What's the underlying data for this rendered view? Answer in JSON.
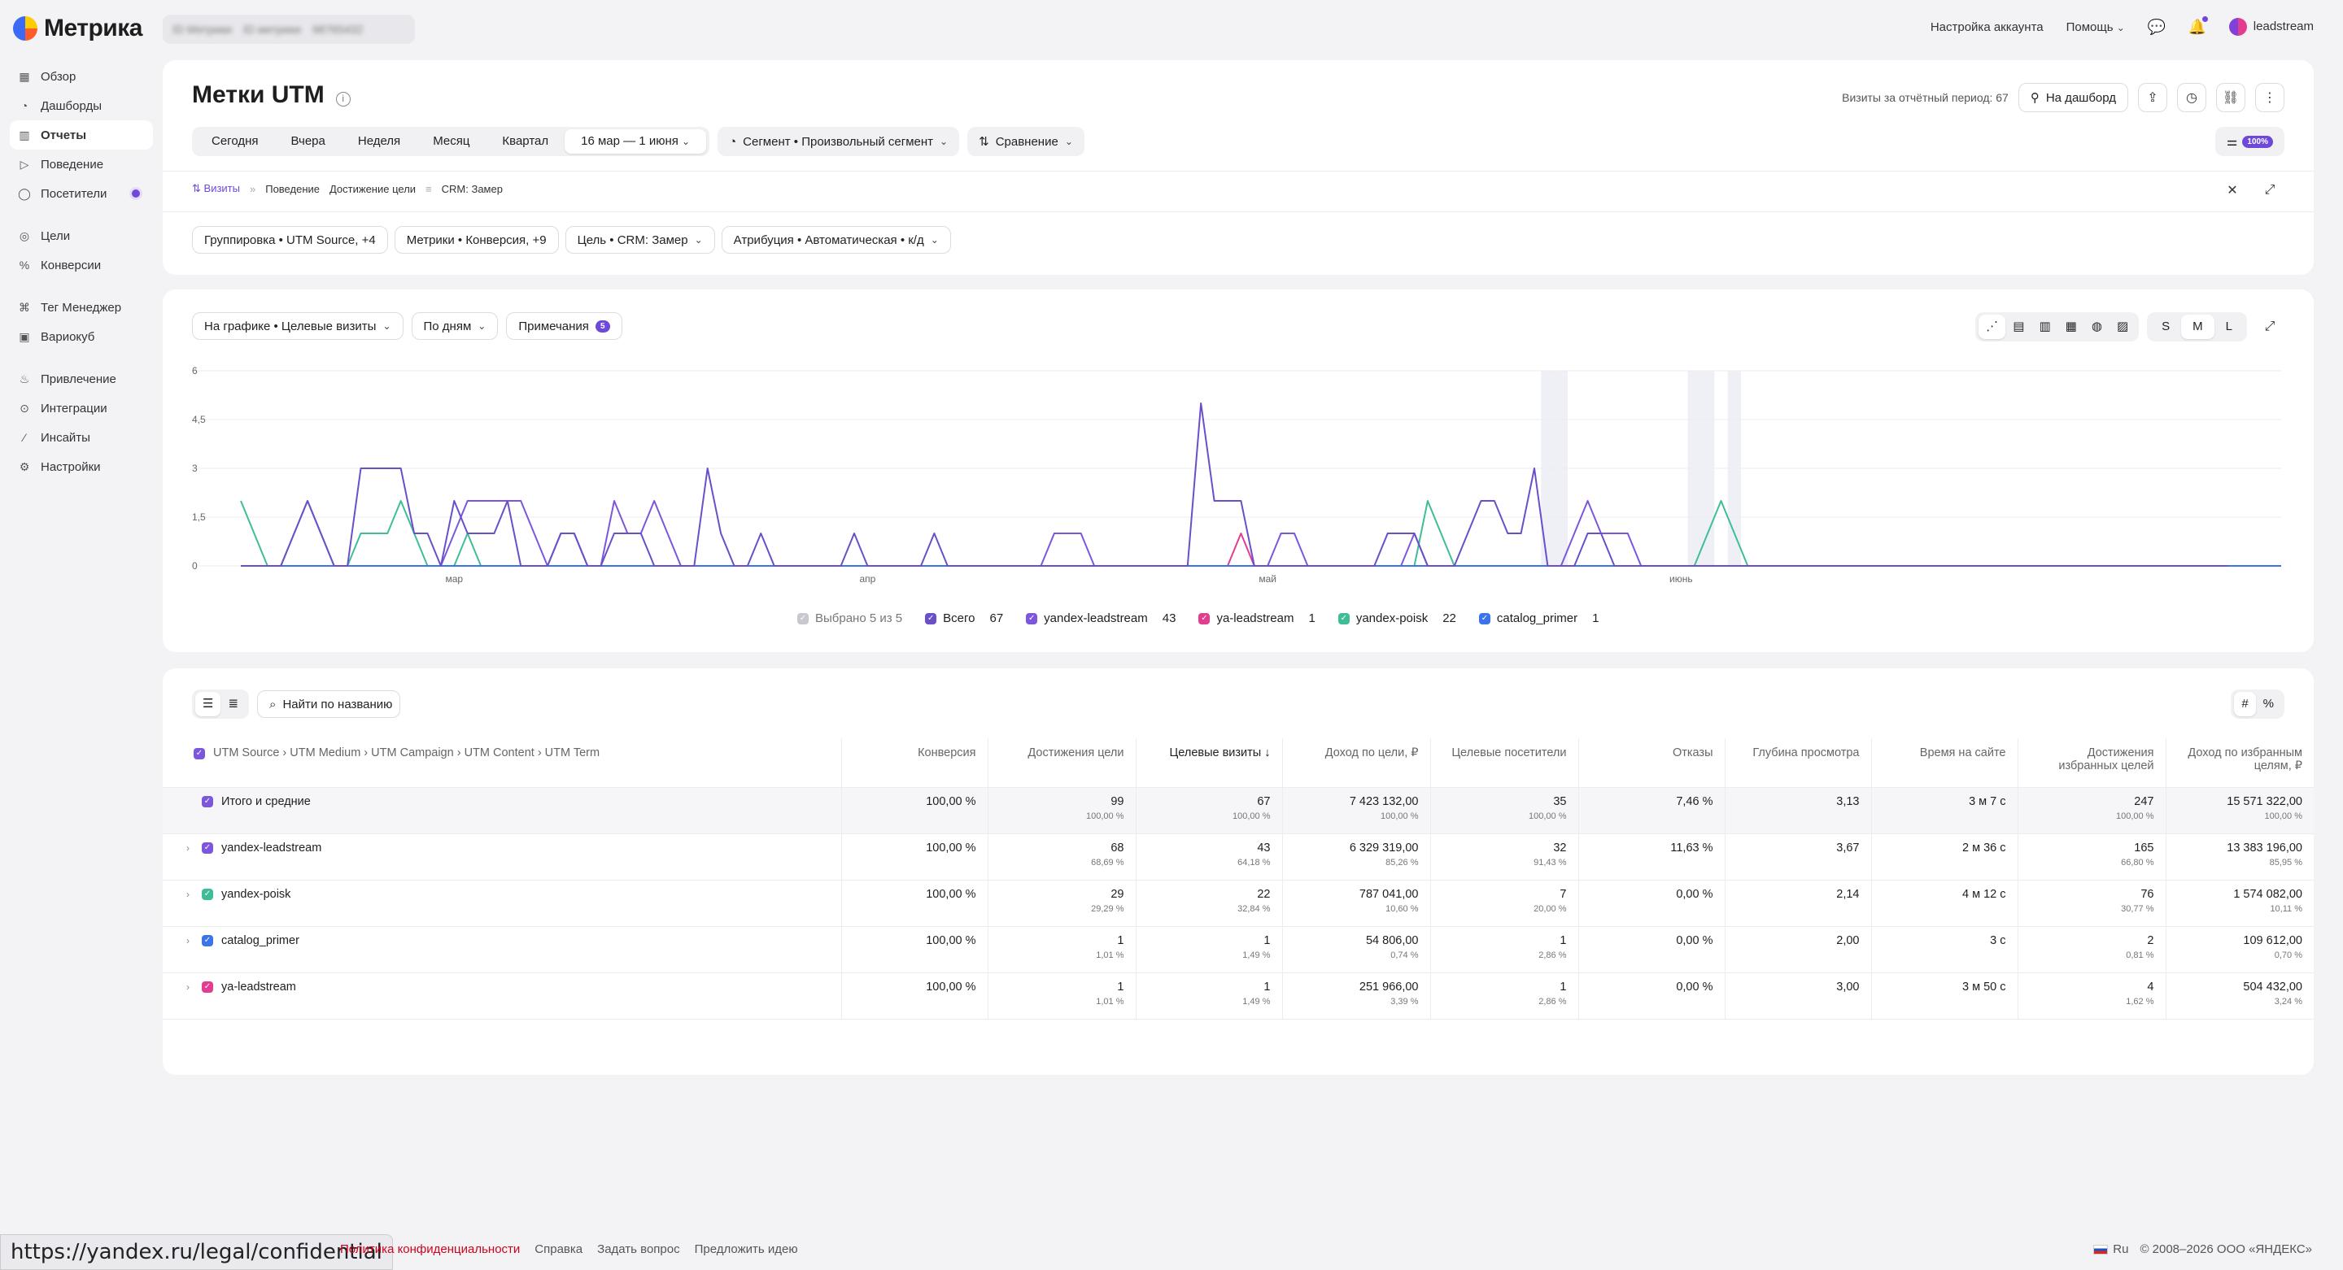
{
  "app": {
    "name": "Метрика"
  },
  "counter": {
    "label": "ID Метрики",
    "name": "ID метрики",
    "number": "98765432"
  },
  "topbar": {
    "account_settings": "Настройка аккаунта",
    "help": "Помощь",
    "user": "leadstream"
  },
  "sidebar": {
    "items": [
      {
        "label": "Обзор",
        "icon": "grid-icon"
      },
      {
        "label": "Дашборды",
        "icon": "dashboard-icon"
      },
      {
        "label": "Отчеты",
        "icon": "reports-icon",
        "active": true
      },
      {
        "label": "Поведение",
        "icon": "play-icon"
      },
      {
        "label": "Посетители",
        "icon": "user-icon"
      },
      {
        "label": "Цели",
        "icon": "target-icon"
      },
      {
        "label": "Конверсии",
        "icon": "percent-icon"
      },
      {
        "label": "Тег Менеджер",
        "icon": "tag-icon"
      },
      {
        "label": "Вариокуб",
        "icon": "cube-icon"
      },
      {
        "label": "Привлечение",
        "icon": "flame-icon"
      },
      {
        "label": "Интеграции",
        "icon": "plug-icon"
      },
      {
        "label": "Инсайты",
        "icon": "wand-icon"
      },
      {
        "label": "Настройки",
        "icon": "gear-icon"
      }
    ]
  },
  "header": {
    "title": "Метки UTM",
    "visits_label": "Визиты за отчётный период: 67",
    "to_dashboard": "На дашборд",
    "periods": [
      "Сегодня",
      "Вчера",
      "Неделя",
      "Месяц",
      "Квартал"
    ],
    "date_range": "16 мар — 1 июня",
    "segment": "Сегмент • Произвольный сегмент",
    "comparison": "Сравнение",
    "sampling_badge": "100%"
  },
  "breadcrumbs": [
    "Визиты",
    "Поведение",
    "Достижение цели",
    "CRM: Замер"
  ],
  "filters": [
    "Группировка • UTM Source, +4",
    "Метрики • Конверсия, +9",
    "Цель • CRM: Замер",
    "Атрибуция • Автоматическая • к/д"
  ],
  "chart_controls": {
    "on_chart": "На графике • Целевые визиты",
    "by_days": "По дням",
    "notes": "Примечания",
    "notes_count": "5",
    "sizes": [
      "S",
      "M",
      "L"
    ],
    "selected_size": "M"
  },
  "chart_data": {
    "type": "line",
    "ylim": [
      0,
      6
    ],
    "y_ticks": [
      "0",
      "1,5",
      "3",
      "4,5",
      "6"
    ],
    "x_tick_labels": [
      {
        "label": "мар",
        "index": 16
      },
      {
        "label": "апр",
        "index": 47
      },
      {
        "label": "май",
        "index": 77
      },
      {
        "label": "июнь",
        "index": 108
      }
    ],
    "x_start": "2026-03-01",
    "x_end": "2026-06-01",
    "highlight_days": [
      98,
      99,
      109,
      110,
      112
    ],
    "series": [
      {
        "name": "yandex-leadstream",
        "color": "#7c57dc",
        "values": [
          0,
          0,
          0,
          0,
          0,
          0,
          0,
          0,
          0,
          0,
          0,
          0,
          0,
          0,
          0,
          0,
          1,
          2,
          2,
          2,
          2,
          2,
          1,
          0,
          1,
          1,
          0,
          0,
          2,
          1,
          1,
          2,
          1,
          0,
          0,
          0,
          0,
          0,
          0,
          0,
          0,
          0,
          0,
          0,
          0,
          0,
          0,
          0,
          0,
          0,
          0,
          0,
          0,
          0,
          0,
          0,
          0,
          0,
          0,
          0,
          0,
          1,
          1,
          1,
          0,
          0,
          0,
          0,
          0,
          0,
          0,
          0,
          0,
          0,
          0,
          0,
          0,
          0,
          1,
          1,
          0,
          0,
          0,
          0,
          0,
          0,
          0,
          0,
          1,
          0,
          0,
          0,
          0,
          0,
          0,
          0,
          0,
          0,
          0,
          0,
          1,
          2,
          1,
          1,
          1,
          0,
          0,
          0,
          0,
          0,
          0,
          0,
          0,
          0,
          0,
          0,
          0,
          0,
          0,
          0,
          0,
          0,
          0,
          0,
          0,
          0,
          0,
          0,
          0,
          0,
          0,
          0,
          0,
          0,
          0,
          0,
          0,
          0,
          0,
          0,
          0,
          0,
          0,
          0,
          0,
          0,
          0,
          0,
          0,
          0,
          0,
          0,
          0,
          0
        ]
      },
      {
        "name": "ya-leadstream",
        "color": "#e23d8e",
        "values": [
          0,
          0,
          0,
          0,
          0,
          0,
          0,
          0,
          0,
          0,
          0,
          0,
          0,
          0,
          0,
          0,
          0,
          0,
          0,
          0,
          0,
          0,
          0,
          0,
          0,
          0,
          0,
          0,
          0,
          0,
          0,
          0,
          0,
          0,
          0,
          0,
          0,
          0,
          0,
          0,
          0,
          0,
          0,
          0,
          0,
          0,
          0,
          0,
          0,
          0,
          0,
          0,
          0,
          0,
          0,
          0,
          0,
          0,
          0,
          0,
          0,
          0,
          0,
          0,
          0,
          0,
          0,
          0,
          0,
          0,
          0,
          0,
          0,
          0,
          0,
          1,
          0,
          0,
          0,
          0,
          0,
          0,
          0,
          0,
          0,
          0,
          0,
          0,
          0,
          0,
          0,
          0,
          0,
          0,
          0,
          0,
          0,
          0,
          0,
          0,
          0,
          0,
          0,
          0,
          0,
          0,
          0,
          0,
          0,
          0,
          0,
          0,
          0,
          0,
          0,
          0,
          0,
          0,
          0,
          0,
          0,
          0,
          0,
          0,
          0,
          0,
          0,
          0,
          0,
          0,
          0,
          0,
          0,
          0,
          0,
          0,
          0,
          0,
          0,
          0,
          0,
          0,
          0,
          0,
          0,
          0,
          0,
          0,
          0,
          0,
          0,
          0,
          0,
          0
        ]
      },
      {
        "name": "yandex-poisk",
        "color": "#3fbd99",
        "values": [
          2,
          1,
          0,
          0,
          1,
          2,
          1,
          0,
          0,
          1,
          1,
          1,
          2,
          1,
          0,
          0,
          0,
          1,
          0,
          0,
          0,
          0,
          0,
          0,
          0,
          0,
          0,
          0,
          0,
          0,
          0,
          0,
          0,
          0,
          0,
          0,
          0,
          0,
          0,
          0,
          0,
          0,
          0,
          0,
          0,
          0,
          0,
          0,
          0,
          0,
          0,
          0,
          0,
          0,
          0,
          0,
          0,
          0,
          0,
          0,
          0,
          0,
          0,
          0,
          0,
          0,
          0,
          0,
          0,
          0,
          0,
          0,
          0,
          0,
          0,
          0,
          0,
          0,
          0,
          0,
          0,
          0,
          0,
          0,
          0,
          0,
          0,
          0,
          0,
          2,
          1,
          0,
          0,
          0,
          0,
          0,
          0,
          0,
          0,
          0,
          0,
          0,
          0,
          0,
          0,
          0,
          0,
          0,
          0,
          0,
          1,
          2,
          1,
          0,
          0,
          0,
          0,
          0,
          0,
          0,
          0,
          0,
          0,
          0,
          0,
          0,
          0,
          0,
          0,
          0,
          0,
          0,
          0,
          0,
          0,
          0,
          0,
          0,
          0,
          0,
          0,
          0,
          0,
          0,
          0,
          0,
          0,
          0,
          0,
          0,
          0,
          0,
          0,
          0
        ]
      },
      {
        "name": "catalog_primer",
        "color": "#3b73e8",
        "values": [
          0,
          0,
          0,
          0,
          0,
          0,
          0,
          0,
          0,
          0,
          0,
          0,
          0,
          0,
          0,
          0,
          0,
          0,
          0,
          0,
          0,
          0,
          0,
          0,
          0,
          0,
          0,
          0,
          0,
          0,
          0,
          0,
          0,
          0,
          0,
          0,
          0,
          0,
          0,
          0,
          0,
          0,
          0,
          0,
          0,
          0,
          0,
          0,
          0,
          0,
          0,
          0,
          0,
          0,
          0,
          0,
          0,
          0,
          0,
          0,
          0,
          0,
          0,
          0,
          0,
          0,
          0,
          0,
          0,
          0,
          0,
          0,
          0,
          0,
          0,
          0,
          0,
          0,
          0,
          0,
          0,
          0,
          0,
          0,
          0,
          0,
          0,
          0,
          0,
          0,
          0,
          0,
          0,
          0,
          0,
          0,
          0,
          0,
          0,
          0,
          0,
          0,
          0,
          0,
          0,
          0,
          0,
          0,
          0,
          0,
          0,
          0,
          0,
          0,
          0,
          0,
          0,
          0,
          0,
          0,
          0,
          0,
          0,
          0,
          0,
          0,
          0,
          0,
          0,
          0,
          0,
          0,
          0,
          0,
          0,
          0,
          0,
          0,
          0,
          0,
          0,
          0,
          0,
          0,
          0,
          0,
          0,
          0,
          0,
          0,
          0,
          0,
          0,
          0
        ]
      },
      {
        "name": "Всего",
        "color": "#6a4fc9",
        "values": [
          0,
          0,
          0,
          0,
          1,
          2,
          1,
          0,
          0,
          3,
          3,
          3,
          3,
          1,
          1,
          0,
          2,
          1,
          1,
          1,
          2,
          0,
          0,
          0,
          1,
          1,
          0,
          0,
          1,
          1,
          1,
          0,
          0,
          0,
          0,
          3,
          1,
          0,
          0,
          1,
          0,
          0,
          0,
          0,
          0,
          0,
          1,
          0,
          0,
          0,
          0,
          0,
          1,
          0,
          0,
          0,
          0,
          0,
          0,
          0,
          0,
          0,
          0,
          0,
          0,
          0,
          0,
          0,
          0,
          0,
          0,
          0,
          5,
          2,
          2,
          2,
          0,
          0,
          0,
          0,
          0,
          0,
          0,
          0,
          0,
          0,
          1,
          1,
          1,
          0,
          0,
          0,
          1,
          2,
          2,
          1,
          1,
          3,
          0,
          0,
          0,
          1,
          1,
          0,
          0,
          0,
          0,
          0,
          0,
          0,
          0,
          0,
          0,
          0,
          0,
          0,
          0,
          0,
          0,
          0,
          0,
          0,
          0,
          0,
          0,
          0,
          0,
          0,
          0,
          0,
          0,
          0,
          0,
          0,
          0,
          0,
          0,
          0,
          0,
          0,
          0,
          0,
          0,
          0,
          0,
          0,
          0,
          0,
          0,
          0
        ]
      }
    ],
    "legend": {
      "selected_label": "Выбрано 5 из 5",
      "entries": [
        {
          "name": "Всего",
          "count": "67",
          "color": "#6a4fc9"
        },
        {
          "name": "yandex-leadstream",
          "count": "43",
          "color": "#7c57dc"
        },
        {
          "name": "ya-leadstream",
          "count": "1",
          "color": "#e23d8e"
        },
        {
          "name": "yandex-poisk",
          "count": "22",
          "color": "#3fbd99"
        },
        {
          "name": "catalog_primer",
          "count": "1",
          "color": "#3b73e8"
        }
      ]
    }
  },
  "table_controls": {
    "search_placeholder": "Найти по названию"
  },
  "table": {
    "group_header": "UTM Source › UTM Medium › UTM Campaign › UTM Content › UTM Term",
    "columns": [
      "Конверсия",
      "Достижения цели",
      "Целевые визиты",
      "Доход по цели, ₽",
      "Целевые посетители",
      "Отказы",
      "Глубина просмотра",
      "Время на сайте",
      "Достижения избранных целей",
      "Доход по избранным целям, ₽"
    ],
    "sorted_column": "Целевые визиты ↓",
    "rows": [
      {
        "name": "Итого и средние",
        "color": "#7c57dc",
        "total": true,
        "cells": [
          [
            "100,00 %",
            ""
          ],
          [
            "99",
            "100,00 %"
          ],
          [
            "67",
            "100,00 %"
          ],
          [
            "7 423 132,00",
            "100,00 %"
          ],
          [
            "35",
            "100,00 %"
          ],
          [
            "7,46 %",
            ""
          ],
          [
            "3,13",
            ""
          ],
          [
            "3 м 7 с",
            ""
          ],
          [
            "247",
            "100,00 %"
          ],
          [
            "15 571 322,00",
            "100,00 %"
          ]
        ]
      },
      {
        "name": "yandex-leadstream",
        "color": "#7c57dc",
        "cells": [
          [
            "100,00 %",
            ""
          ],
          [
            "68",
            "68,69 %"
          ],
          [
            "43",
            "64,18 %"
          ],
          [
            "6 329 319,00",
            "85,26 %"
          ],
          [
            "32",
            "91,43 %"
          ],
          [
            "11,63 %",
            ""
          ],
          [
            "3,67",
            ""
          ],
          [
            "2 м 36 с",
            ""
          ],
          [
            "165",
            "66,80 %"
          ],
          [
            "13 383 196,00",
            "85,95 %"
          ]
        ]
      },
      {
        "name": "yandex-poisk",
        "color": "#3fbd99",
        "cells": [
          [
            "100,00 %",
            ""
          ],
          [
            "29",
            "29,29 %"
          ],
          [
            "22",
            "32,84 %"
          ],
          [
            "787 041,00",
            "10,60 %"
          ],
          [
            "7",
            "20,00 %"
          ],
          [
            "0,00 %",
            ""
          ],
          [
            "2,14",
            ""
          ],
          [
            "4 м 12 с",
            ""
          ],
          [
            "76",
            "30,77 %"
          ],
          [
            "1 574 082,00",
            "10,11 %"
          ]
        ]
      },
      {
        "name": "catalog_primer",
        "color": "#3b73e8",
        "cells": [
          [
            "100,00 %",
            ""
          ],
          [
            "1",
            "1,01 %"
          ],
          [
            "1",
            "1,49 %"
          ],
          [
            "54 806,00",
            "0,74 %"
          ],
          [
            "1",
            "2,86 %"
          ],
          [
            "0,00 %",
            ""
          ],
          [
            "2,00",
            ""
          ],
          [
            "3 с",
            ""
          ],
          [
            "2",
            "0,81 %"
          ],
          [
            "109 612,00",
            "0,70 %"
          ]
        ]
      },
      {
        "name": "ya-leadstream",
        "color": "#e23d8e",
        "cells": [
          [
            "100,00 %",
            ""
          ],
          [
            "1",
            "1,01 %"
          ],
          [
            "1",
            "1,49 %"
          ],
          [
            "251 966,00",
            "3,39 %"
          ],
          [
            "1",
            "2,86 %"
          ],
          [
            "0,00 %",
            ""
          ],
          [
            "3,00",
            ""
          ],
          [
            "3 м 50 с",
            ""
          ],
          [
            "4",
            "1,62 %"
          ],
          [
            "504 432,00",
            "3,24 %"
          ]
        ]
      }
    ]
  },
  "footer": {
    "status_url": "https://yandex.ru/legal/confidential",
    "links": [
      "Политика конфиденциальности",
      "Справка",
      "Задать вопрос",
      "Предложить идею"
    ],
    "lang": "Ru",
    "copyright": "© 2008–2026 ООО «ЯНДЕКС»"
  }
}
